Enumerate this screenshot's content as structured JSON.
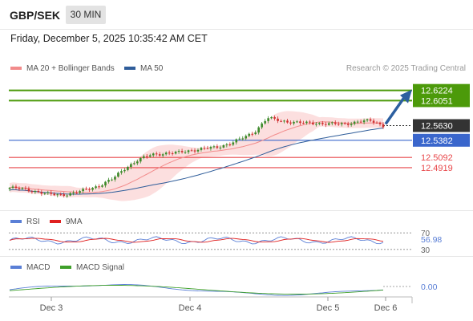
{
  "header": {
    "symbol": "GBP/SEK",
    "timeframe": "30 MIN",
    "datetime": "Friday, December 5, 2025 10:35:42 AM CET"
  },
  "legend": {
    "ma20": "MA 20 + Bollinger Bands",
    "ma50": "MA 50",
    "credit": "Research © 2025 Trading Central"
  },
  "colors": {
    "resistance": "#4c9a0a",
    "current": "#333333",
    "pivot": "#3a66cc",
    "support": "#e8474a",
    "ma20": "#f28b8b",
    "ma50": "#2f5d9a",
    "bollinger": "#fbd9d9",
    "candle_up": "#3c8a2a",
    "candle_down": "#d03030",
    "arrow": "#2c5fa0"
  },
  "chart_data": [
    {
      "type": "line",
      "title": "",
      "ylim": [
        12.42,
        12.645
      ],
      "x_ticks": [
        "Dec 3",
        "Dec 4",
        "Dec 5",
        "Dec 6"
      ],
      "levels": [
        {
          "name": "resistance-2",
          "value": "12.6224",
          "role": "resistance"
        },
        {
          "name": "resistance-1",
          "value": "12.6051",
          "role": "resistance"
        },
        {
          "name": "last-price",
          "value": "12.5630",
          "role": "current"
        },
        {
          "name": "pivot",
          "value": "12.5382",
          "role": "pivot"
        },
        {
          "name": "support-1",
          "value": "12.5092",
          "role": "support"
        },
        {
          "name": "support-2",
          "value": "12.4919",
          "role": "support"
        }
      ],
      "series": [
        {
          "name": "MA 20 + Bollinger Bands",
          "role": "ma20"
        },
        {
          "name": "MA 50",
          "role": "ma50"
        }
      ],
      "close_anchor": [
        12.458,
        12.456,
        12.452,
        12.447,
        12.446,
        12.449,
        12.455,
        12.462,
        12.473,
        12.492,
        12.505,
        12.514,
        12.516,
        12.517,
        12.521,
        12.524,
        12.526,
        12.532,
        12.541,
        12.552,
        12.576,
        12.571,
        12.569,
        12.567,
        12.567,
        12.566,
        12.565,
        12.57,
        12.571,
        12.563
      ]
    },
    {
      "type": "line",
      "title": "",
      "ylim": [
        20,
        80
      ],
      "levels": [
        {
          "name": "rsi-70",
          "value": "70"
        },
        {
          "name": "rsi-30",
          "value": "30"
        }
      ],
      "series": [
        {
          "name": "RSI",
          "last": "56.98"
        },
        {
          "name": "9MA"
        }
      ]
    },
    {
      "type": "line",
      "title": "",
      "series": [
        {
          "name": "MACD",
          "last": "0.00"
        },
        {
          "name": "MACD Signal"
        }
      ]
    }
  ],
  "panels": {
    "rsi": {
      "label": "RSI",
      "ma_label": "9MA",
      "value": "56.98",
      "level_high": "70",
      "level_low": "30"
    },
    "macd": {
      "label": "MACD",
      "signal_label": "MACD Signal",
      "value": "0.00"
    }
  }
}
